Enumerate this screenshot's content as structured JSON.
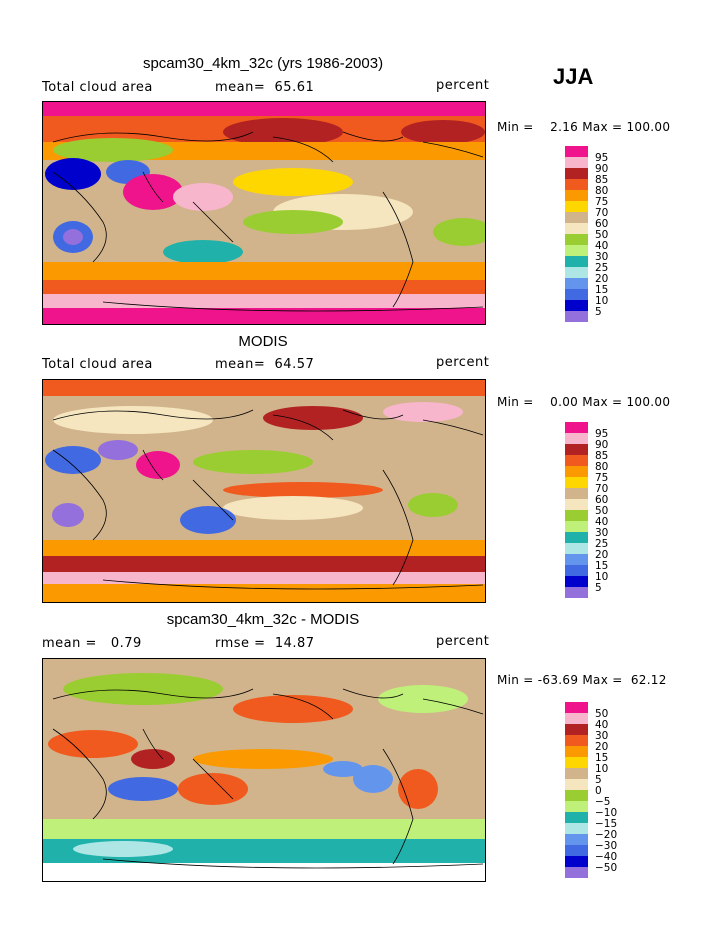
{
  "season": "JJA",
  "chart_data": [
    {
      "type": "heatmap",
      "title": "spcam30_4km_32c (yrs 1986-2003)",
      "variable": "Total cloud area",
      "mean_label": "mean=",
      "mean_value": "65.61",
      "units": "percent",
      "min_label": "Min =",
      "min_value": "2.16",
      "max_label": "Max =",
      "max_value": "100.00",
      "legend_levels": [
        "95",
        "90",
        "85",
        "80",
        "75",
        "70",
        "60",
        "50",
        "40",
        "30",
        "25",
        "20",
        "15",
        "10",
        "5"
      ],
      "legend_colors": [
        "#f0148c",
        "#f8b6cc",
        "#b22222",
        "#f05a1e",
        "#fa9a00",
        "#ffd700",
        "#d2b48c",
        "#f5e6c0",
        "#9acd32",
        "#bef07a",
        "#20b2aa",
        "#aee6e6",
        "#6495ed",
        "#4169e1",
        "#0000cd",
        "#9370db"
      ]
    },
    {
      "type": "heatmap",
      "title": "MODIS",
      "variable": "Total cloud area",
      "mean_label": "mean=",
      "mean_value": "64.57",
      "units": "percent",
      "min_label": "Min =",
      "min_value": "0.00",
      "max_label": "Max =",
      "max_value": "100.00",
      "legend_levels": [
        "95",
        "90",
        "85",
        "80",
        "75",
        "70",
        "60",
        "50",
        "40",
        "30",
        "25",
        "20",
        "15",
        "10",
        "5"
      ],
      "legend_colors": [
        "#f0148c",
        "#f8b6cc",
        "#b22222",
        "#f05a1e",
        "#fa9a00",
        "#ffd700",
        "#d2b48c",
        "#f5e6c0",
        "#9acd32",
        "#bef07a",
        "#20b2aa",
        "#aee6e6",
        "#6495ed",
        "#4169e1",
        "#0000cd",
        "#9370db"
      ]
    },
    {
      "type": "heatmap",
      "title": "spcam30_4km_32c - MODIS",
      "mean_label": "mean =",
      "mean_value": "0.79",
      "rmse_label": "rmse =",
      "rmse_value": "14.87",
      "units": "percent",
      "min_label": "Min =",
      "min_value": "-63.69",
      "max_label": "Max =",
      "max_value": "62.12",
      "legend_levels": [
        "50",
        "40",
        "30",
        "20",
        "15",
        "10",
        "5",
        "0",
        "−5",
        "−10",
        "−15",
        "−20",
        "−30",
        "−40",
        "−50"
      ],
      "legend_colors": [
        "#f0148c",
        "#f8b6cc",
        "#b22222",
        "#f05a1e",
        "#fa9a00",
        "#ffd700",
        "#d2b48c",
        "#f5e6c0",
        "#9acd32",
        "#bef07a",
        "#20b2aa",
        "#aee6e6",
        "#6495ed",
        "#4169e1",
        "#0000cd",
        "#9370db"
      ]
    }
  ]
}
